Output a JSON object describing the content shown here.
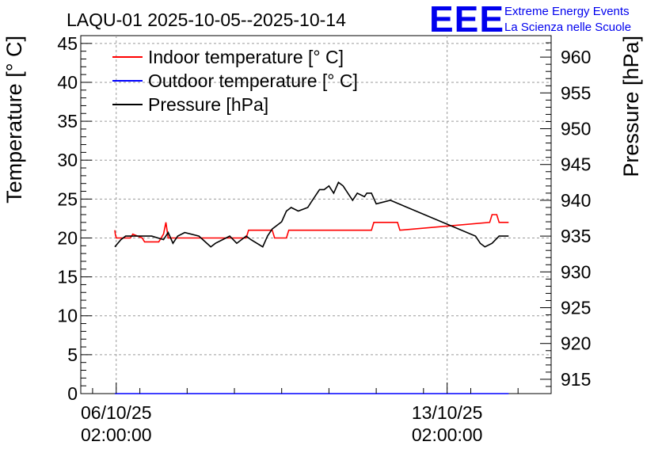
{
  "header": {
    "title": "LAQU-01 2025-10-05--2025-10-14"
  },
  "logo": {
    "mark": "EEE",
    "line1": "Extreme Energy Events",
    "line2": "La Scienza nelle Scuole"
  },
  "colors": {
    "indoor": "#ff0000",
    "outdoor": "#0000ff",
    "pressure": "#000000",
    "grid": "#9a9a9a",
    "logo": "#0000ee"
  },
  "chart_data": {
    "type": "line",
    "title": "LAQU-01 2025-10-05--2025-10-14",
    "xlabel": "",
    "ylabel": "Temperature [° C]",
    "y2label": "Pressure [hPa]",
    "xlim": [
      -0.75,
      9.2
    ],
    "ylim": [
      0,
      46
    ],
    "y2lim": [
      913,
      963
    ],
    "grid": true,
    "legend_position": "top-left",
    "x_unit": "days since 06/10/25 02:00:00",
    "y_ticks": [
      0,
      5,
      10,
      15,
      20,
      25,
      30,
      35,
      40,
      45
    ],
    "y2_ticks": [
      915,
      920,
      925,
      930,
      935,
      940,
      945,
      950,
      955,
      960
    ],
    "x_ticks": [
      {
        "x": 0,
        "label1": "06/10/25",
        "label2": "02:00:00"
      },
      {
        "x": 7,
        "label1": "13/10/25",
        "label2": "02:00:00"
      }
    ],
    "series": [
      {
        "name": "Indoor temperature [° C]",
        "axis": "left",
        "color": "#ff0000",
        "x": [
          -0.03,
          -0.02,
          0.0,
          0.3,
          0.35,
          0.55,
          0.6,
          0.9,
          0.95,
          1.0,
          1.05,
          1.1,
          1.5,
          2.75,
          2.8,
          3.3,
          3.35,
          3.6,
          3.65,
          4.15,
          4.2,
          5.4,
          5.45,
          5.95,
          6.0,
          7.9,
          7.95,
          8.05,
          8.1,
          8.3
        ],
        "y": [
          21.0,
          20.5,
          20.0,
          20.0,
          20.5,
          20.0,
          19.5,
          19.5,
          20.0,
          20.5,
          22.0,
          20.0,
          20.0,
          20.0,
          21.0,
          21.0,
          20.0,
          20.0,
          21.0,
          21.0,
          21.0,
          21.0,
          22.0,
          22.0,
          21.0,
          22.0,
          23.0,
          23.0,
          22.0,
          22.0
        ]
      },
      {
        "name": "Outdoor temperature [° C]",
        "axis": "left",
        "color": "#0000ff",
        "x": [
          -0.03,
          8.3
        ],
        "y": [
          0.0,
          0.0
        ]
      },
      {
        "name": "Pressure [hPa]",
        "axis": "right",
        "color": "#000000",
        "x": [
          -0.03,
          0.1,
          0.2,
          0.45,
          0.75,
          1.0,
          1.1,
          1.2,
          1.3,
          1.45,
          1.75,
          2.0,
          2.1,
          2.4,
          2.55,
          2.75,
          2.85,
          3.1,
          3.2,
          3.3,
          3.4,
          3.5,
          3.6,
          3.7,
          3.85,
          4.05,
          4.15,
          4.2,
          4.3,
          4.4,
          4.5,
          4.6,
          4.7,
          4.8,
          4.9,
          5.0,
          5.1,
          5.25,
          5.3,
          5.4,
          5.5,
          5.8,
          7.6,
          7.7,
          7.8,
          7.95,
          8.1,
          8.3
        ],
        "y": [
          933.5,
          934.5,
          935.0,
          935.0,
          935.0,
          934.5,
          935.5,
          934.0,
          935.0,
          935.5,
          935.0,
          933.5,
          934.0,
          935.0,
          934.0,
          935.0,
          934.5,
          933.5,
          935.0,
          936.0,
          936.5,
          937.0,
          938.5,
          939.0,
          938.5,
          939.0,
          940.0,
          940.5,
          941.5,
          941.5,
          942.0,
          941.0,
          942.5,
          942.0,
          941.0,
          940.0,
          941.0,
          940.5,
          941.0,
          941.0,
          939.5,
          940.0,
          935.0,
          934.0,
          933.5,
          934.0,
          935.0,
          935.0
        ]
      }
    ]
  }
}
